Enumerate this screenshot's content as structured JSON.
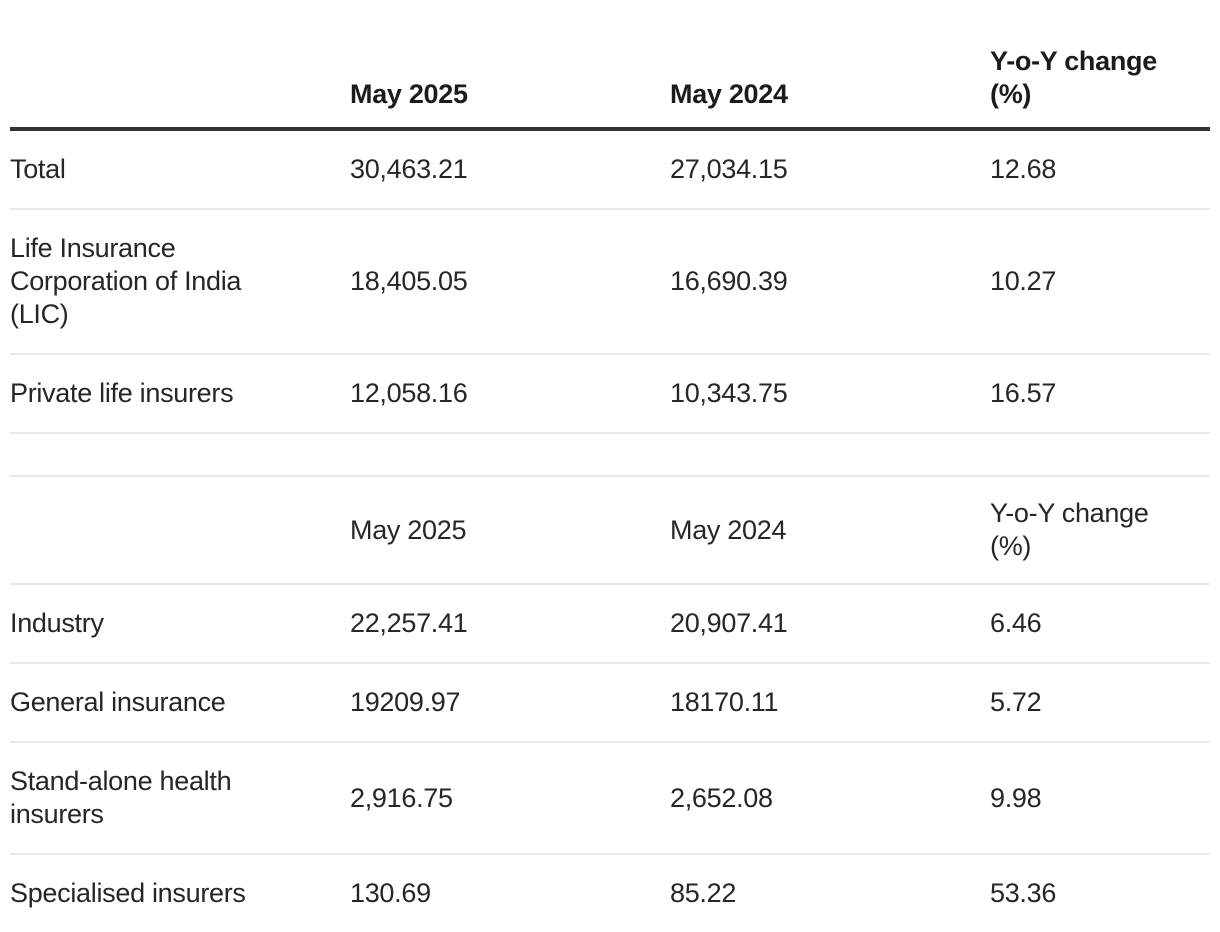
{
  "colors": {
    "background": "#ffffff",
    "text": "#262626",
    "header_text": "#1c1c1c",
    "heavy_rule": "#333333",
    "light_rule": "#e9e9e9"
  },
  "chart_data": [
    {
      "type": "table",
      "header_style": "bold",
      "columns": [
        "",
        "May 2025",
        "May 2024",
        "Y-o-Y change (%)"
      ],
      "rows": [
        [
          "Total",
          "30,463.21",
          "27,034.15",
          "12.68"
        ],
        [
          "Life Insurance Corporation of India (LIC)",
          "18,405.05",
          "16,690.39",
          "10.27"
        ],
        [
          "Private life insurers",
          "12,058.16",
          "10,343.75",
          "16.57"
        ]
      ]
    },
    {
      "type": "table",
      "header_style": "regular",
      "columns": [
        "",
        "May 2025",
        "May 2024",
        "Y-o-Y change (%)"
      ],
      "rows": [
        [
          "Industry",
          "22,257.41",
          "20,907.41",
          "6.46"
        ],
        [
          "General insurance",
          "19209.97",
          "18170.11",
          "5.72"
        ],
        [
          "Stand-alone health insurers",
          "2,916.75",
          "2,652.08",
          "9.98"
        ],
        [
          "Specialised insurers",
          "130.69",
          "85.22",
          "53.36"
        ]
      ]
    }
  ]
}
